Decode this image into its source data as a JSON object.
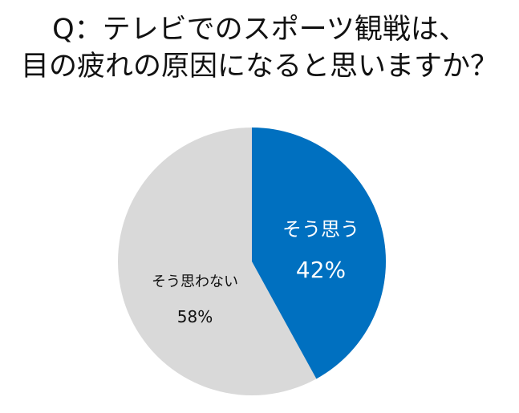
{
  "title": {
    "line1": "Q：テレビでのスポーツ観戦は、",
    "line2": "目の疲れの原因になると思いますか？"
  },
  "colors": {
    "yes": "#0070C0",
    "no": "#D9D9D9",
    "background": "#FFFFFF"
  },
  "slices": [
    {
      "label": "そう思う",
      "value_label": "42%",
      "value": 42,
      "color": "#0070C0"
    },
    {
      "label": "そう思わない",
      "value_label": "58%",
      "value": 58,
      "color": "#D9D9D9"
    }
  ],
  "chart_data": {
    "type": "pie",
    "title": "Q：テレビでのスポーツ観戦は、目の疲れの原因になると思いますか？",
    "categories": [
      "そう思う",
      "そう思わない"
    ],
    "values": [
      42,
      58
    ],
    "unit": "%",
    "colors": [
      "#0070C0",
      "#D9D9D9"
    ],
    "start_angle": "12 o'clock, clockwise",
    "legend": "none (data labels inside slices)"
  }
}
